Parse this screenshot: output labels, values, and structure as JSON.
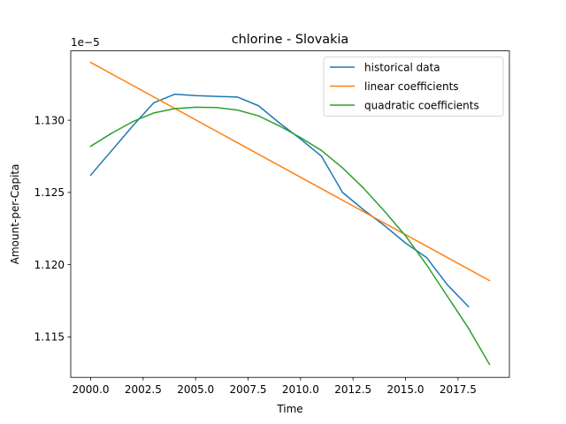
{
  "chart_data": {
    "type": "line",
    "title": "chlorine - Slovakia",
    "xlabel": "Time",
    "ylabel": "Amount-per-Capita",
    "y_offset_label": "1e−5",
    "xlim": [
      1999.05,
      2019.95
    ],
    "ylim": [
      1.1122,
      1.1348
    ],
    "x_ticks": [
      2000.0,
      2002.5,
      2005.0,
      2007.5,
      2010.0,
      2012.5,
      2015.0,
      2017.5
    ],
    "x_tick_labels": [
      "2000.0",
      "2002.5",
      "2005.0",
      "2007.5",
      "2010.0",
      "2012.5",
      "2015.0",
      "2017.5"
    ],
    "y_ticks": [
      1.115,
      1.12,
      1.125,
      1.13
    ],
    "y_tick_labels": [
      "1.115",
      "1.120",
      "1.125",
      "1.130"
    ],
    "grid": false,
    "legend_position": "top-right",
    "series": [
      {
        "name": "historical data",
        "color": "#1f77b4",
        "x": [
          2000,
          2001,
          2002,
          2003,
          2004,
          2005,
          2006,
          2007,
          2008,
          2009,
          2010,
          2011,
          2012,
          2013,
          2014,
          2015,
          2016,
          2017,
          2018
        ],
        "y": [
          1.1262,
          1.1279,
          1.1296,
          1.1312,
          1.1318,
          1.1317,
          1.13165,
          1.1316,
          1.131,
          1.1298,
          1.1287,
          1.1275,
          1.125,
          1.1238,
          1.1227,
          1.1215,
          1.1205,
          1.1186,
          1.1171
        ]
      },
      {
        "name": "linear coefficients",
        "color": "#ff7f0e",
        "x": [
          2000,
          2019
        ],
        "y": [
          1.134,
          1.1189
        ]
      },
      {
        "name": "quadratic coefficients",
        "color": "#2ca02c",
        "x": [
          2000,
          2001,
          2002,
          2003,
          2004,
          2005,
          2006,
          2007,
          2008,
          2009,
          2010,
          2011,
          2012,
          2013,
          2014,
          2015,
          2016,
          2017,
          2018,
          2019
        ],
        "y": [
          1.1282,
          1.1291,
          1.1299,
          1.1305,
          1.1308,
          1.1309,
          1.13088,
          1.1307,
          1.1303,
          1.1296,
          1.1288,
          1.1279,
          1.1267,
          1.1253,
          1.1237,
          1.122,
          1.12,
          1.1178,
          1.1156,
          1.1131
        ]
      }
    ]
  }
}
